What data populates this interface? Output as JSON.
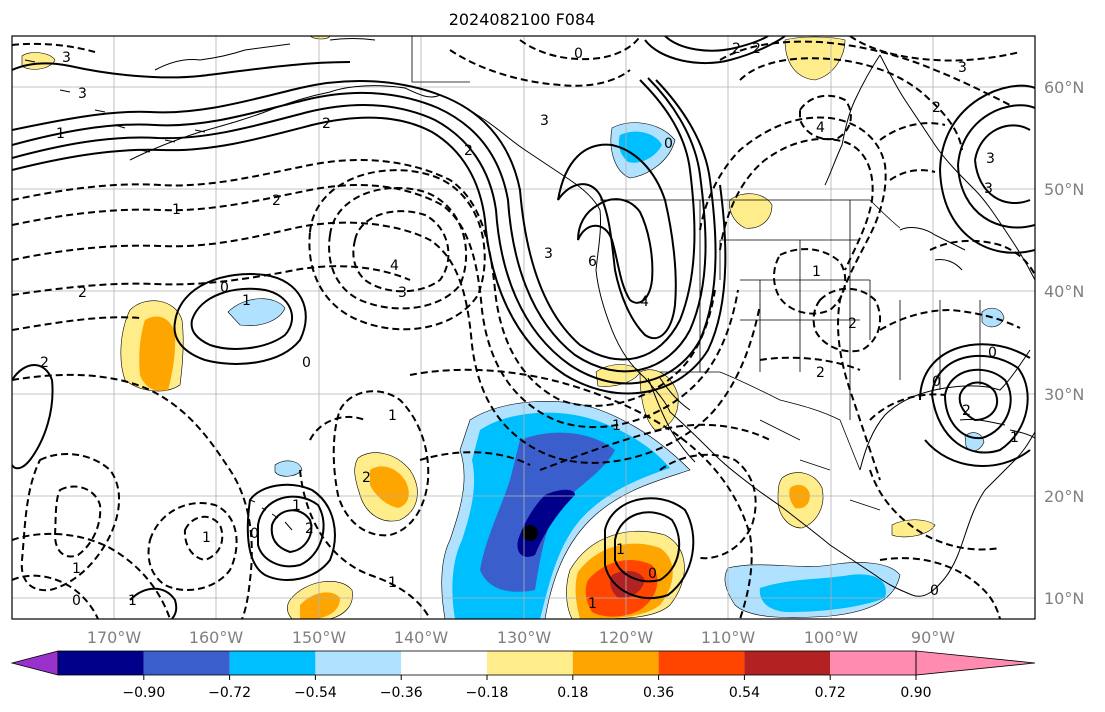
{
  "title": "2024082100 F084",
  "map": {
    "lon_ticks": [
      "170°W",
      "160°W",
      "150°W",
      "140°W",
      "130°W",
      "120°W",
      "110°W",
      "100°W",
      "90°W"
    ],
    "lat_ticks": [
      "60°N",
      "50°N",
      "40°N",
      "30°N",
      "20°N",
      "10°N"
    ],
    "extent": {
      "lon": [
        -180,
        -80
      ],
      "lat": [
        8,
        65
      ]
    }
  },
  "colorbar": {
    "ticks": [
      "−0.90",
      "−0.72",
      "−0.54",
      "−0.36",
      "−0.18",
      "0.18",
      "0.36",
      "0.54",
      "0.72",
      "0.90"
    ],
    "colors": [
      "#9932cc",
      "#00008b",
      "#3a5fcd",
      "#00bfff",
      "#b0e2ff",
      "#ffffff",
      "#ffec8b",
      "#ffa500",
      "#ff4500",
      "#b22222",
      "#ff8cb0"
    ]
  },
  "contour_labels": [
    {
      "text": "3"
    },
    {
      "text": "0"
    },
    {
      "text": "2"
    },
    {
      "text": "2"
    },
    {
      "text": "3"
    },
    {
      "text": "1"
    },
    {
      "text": "2"
    },
    {
      "text": "3"
    },
    {
      "text": "0"
    },
    {
      "text": "2"
    },
    {
      "text": "1"
    },
    {
      "text": "2"
    },
    {
      "text": "4"
    },
    {
      "text": "3"
    },
    {
      "text": "2"
    },
    {
      "text": "3"
    },
    {
      "text": "6"
    },
    {
      "text": "4"
    },
    {
      "text": "0"
    },
    {
      "text": "1"
    },
    {
      "text": "0"
    },
    {
      "text": "1"
    },
    {
      "text": "2"
    },
    {
      "text": "1"
    },
    {
      "text": "2"
    },
    {
      "text": "1"
    },
    {
      "text": "0"
    },
    {
      "text": "1"
    },
    {
      "text": "0"
    },
    {
      "text": "1"
    },
    {
      "text": "1"
    },
    {
      "text": "1"
    },
    {
      "text": "1"
    },
    {
      "text": "0"
    },
    {
      "text": "2"
    },
    {
      "text": "1"
    },
    {
      "text": "0"
    },
    {
      "text": "4"
    },
    {
      "text": "3"
    },
    {
      "text": "2"
    },
    {
      "text": "3"
    },
    {
      "text": "1"
    },
    {
      "text": "2"
    },
    {
      "text": "2"
    },
    {
      "text": "3"
    },
    {
      "text": "0"
    },
    {
      "text": "2"
    },
    {
      "text": "1"
    },
    {
      "text": "0"
    }
  ]
}
